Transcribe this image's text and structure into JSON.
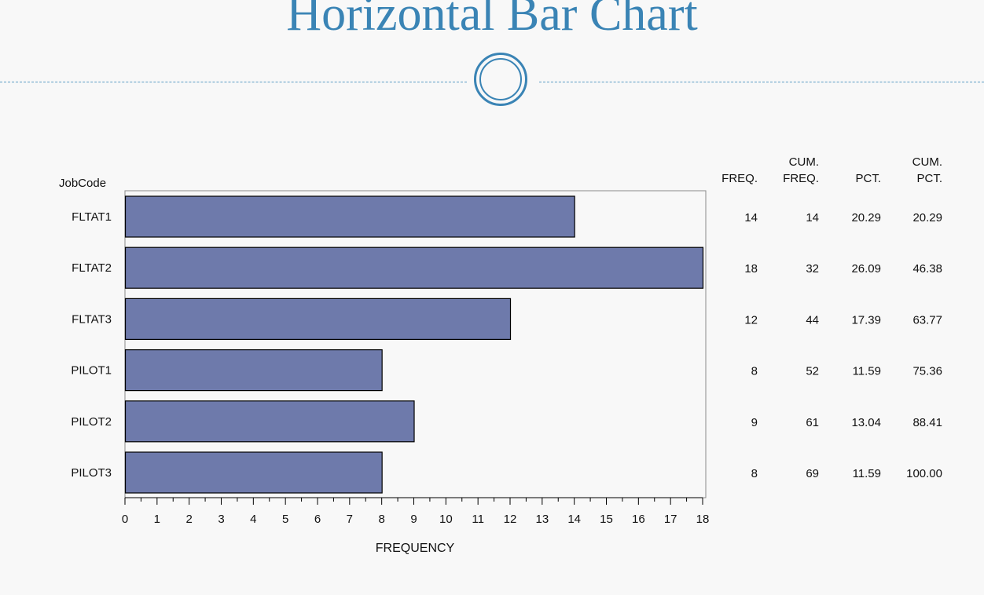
{
  "slide": {
    "title": "Horizontal Bar Chart"
  },
  "chart_data": {
    "type": "bar",
    "orientation": "horizontal",
    "category_label": "JobCode",
    "categories": [
      "FLTAT1",
      "FLTAT2",
      "FLTAT3",
      "PILOT1",
      "PILOT2",
      "PILOT3"
    ],
    "values": [
      14,
      18,
      12,
      8,
      9,
      8
    ],
    "xlabel": "FREQUENCY",
    "xlim": [
      0,
      18
    ],
    "xticks": [
      0,
      1,
      2,
      3,
      4,
      5,
      6,
      7,
      8,
      9,
      10,
      11,
      12,
      13,
      14,
      15,
      16,
      17,
      18
    ],
    "bar_color": "#6e7aab",
    "grid": false,
    "stats_table": {
      "columns": [
        {
          "line1": "",
          "line2": "FREQ."
        },
        {
          "line1": "CUM.",
          "line2": "FREQ."
        },
        {
          "line1": "",
          "line2": "PCT."
        },
        {
          "line1": "CUM.",
          "line2": "PCT."
        }
      ],
      "rows": [
        [
          "14",
          "14",
          "20.29",
          "20.29"
        ],
        [
          "18",
          "32",
          "26.09",
          "46.38"
        ],
        [
          "12",
          "44",
          "17.39",
          "63.77"
        ],
        [
          "8",
          "52",
          "11.59",
          "75.36"
        ],
        [
          "9",
          "61",
          "13.04",
          "88.41"
        ],
        [
          "8",
          "69",
          "11.59",
          "100.00"
        ]
      ]
    }
  }
}
